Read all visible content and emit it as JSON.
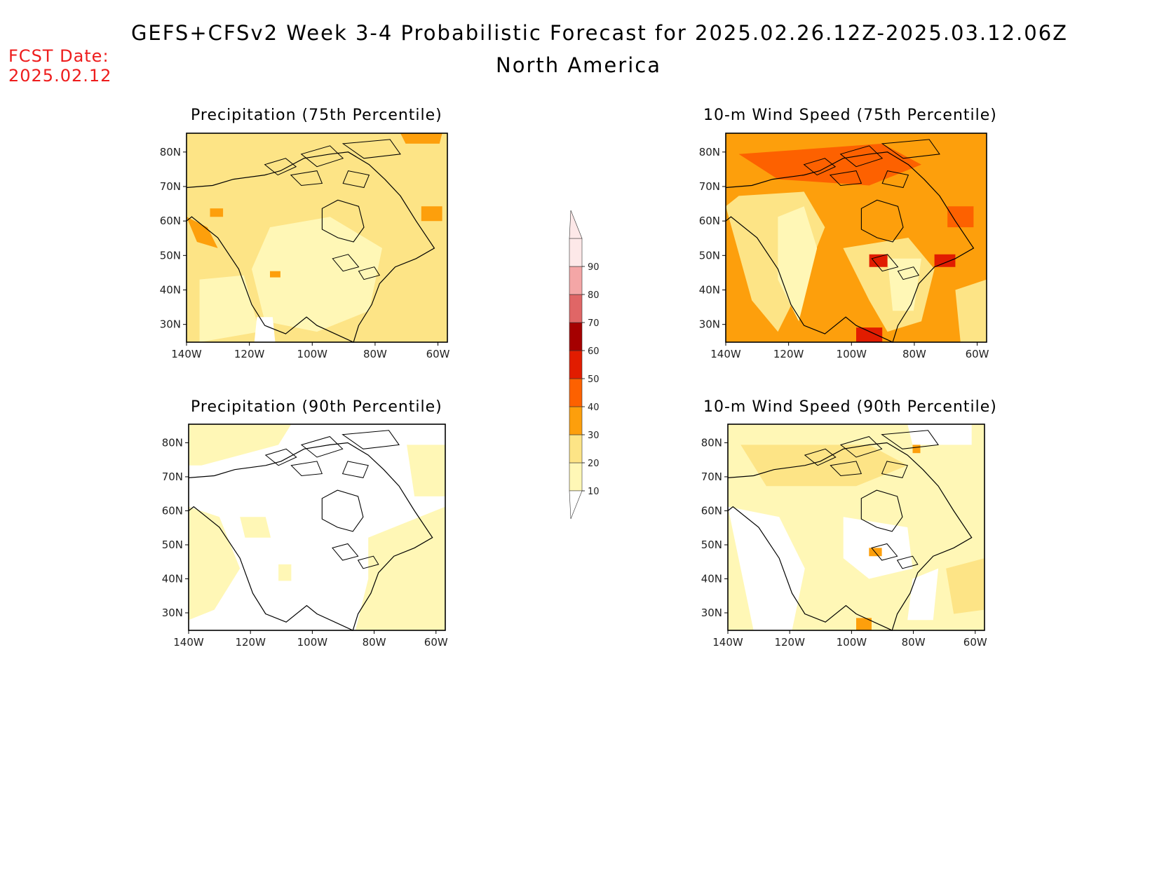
{
  "header": {
    "title": "GEFS+CFSv2 Week 3-4 Probabilistic Forecast for 2025.02.26.12Z-2025.03.12.06Z",
    "subtitle": "North America",
    "fcst_label": "FCST Date:",
    "fcst_date": "2025.02.12"
  },
  "panels": [
    {
      "title": "Precipitation (75th Percentile)",
      "background": "#fde486"
    },
    {
      "title": "10-m Wind Speed (75th Percentile)",
      "background": "#fd9f0c"
    },
    {
      "title": "Precipitation (90th Percentile)",
      "background": "#ffffff"
    },
    {
      "title": "10-m Wind Speed (90th Percentile)",
      "background": "#fff7b6"
    }
  ],
  "axes": {
    "lon_ticks": [
      "140W",
      "120W",
      "100W",
      "80W",
      "60W"
    ],
    "lat_ticks": [
      "80N",
      "70N",
      "60N",
      "50N",
      "40N",
      "30N"
    ]
  },
  "colorbar": {
    "levels": [
      "10",
      "20",
      "30",
      "40",
      "50",
      "60",
      "70",
      "80",
      "90"
    ],
    "colors": [
      "#fff7b6",
      "#fde486",
      "#fd9f0c",
      "#fd6100",
      "#e11c00",
      "#a50000",
      "#e06666",
      "#f4a6a6",
      "#fde8e8"
    ]
  },
  "legend_colors": {
    "white": "#ffffff",
    "light_yellow": "#fff7b6",
    "yellow": "#fde486",
    "orange": "#fd9f0c",
    "dark_orange": "#fd6100",
    "red": "#e11c00",
    "dark_red": "#a50000"
  }
}
